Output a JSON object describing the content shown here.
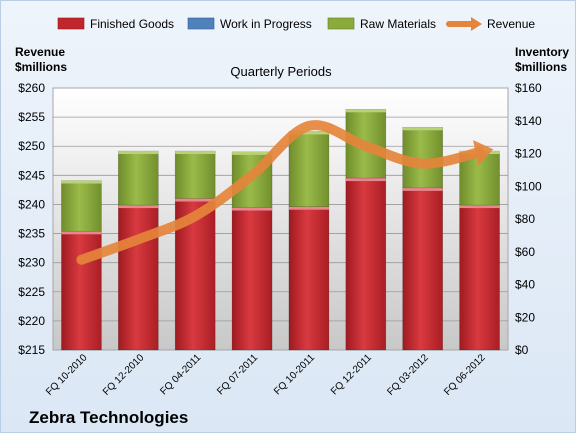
{
  "chart_data": {
    "type": "bar",
    "subtype": "stacked bar with line on secondary axis",
    "title": "Quarterly Periods",
    "company": "Zebra Technologies",
    "left_axis_label": [
      "Revenue",
      "$millions"
    ],
    "right_axis_label": [
      "Inventory",
      "$millions"
    ],
    "categories": [
      "FQ 10-2010",
      "FQ 12-2010",
      "FQ 04-2011",
      "FQ 07-2011",
      "FQ 10-2011",
      "FQ 12-2011",
      "FQ 03-2012",
      "FQ 06-2012"
    ],
    "series": [
      {
        "name": "Finished Goods",
        "axis": "inventory",
        "type": "bar",
        "color": "#c0272d",
        "values": [
          72.5,
          88.5,
          92.5,
          87,
          87.5,
          105,
          99,
          88.5
        ]
      },
      {
        "name": "Work in Progress",
        "axis": "inventory",
        "type": "bar",
        "color": "#4f81bd",
        "values": [
          0,
          0,
          0,
          0,
          0,
          0,
          0,
          0
        ]
      },
      {
        "name": "Raw Materials",
        "axis": "inventory",
        "type": "bar",
        "color": "#8aaa3c",
        "values": [
          31,
          33,
          29,
          34,
          46,
          42,
          37,
          33
        ]
      },
      {
        "name": "Revenue",
        "axis": "revenue",
        "type": "line",
        "color": "#e5843b",
        "values": [
          230.5,
          234,
          238,
          245,
          253.5,
          250,
          247,
          249
        ]
      }
    ],
    "left_axis": {
      "min": 215,
      "max": 260,
      "step": 5,
      "ticks": [
        "$215",
        "$220",
        "$225",
        "$230",
        "$235",
        "$240",
        "$245",
        "$250",
        "$255",
        "$260"
      ]
    },
    "right_axis": {
      "min": 0,
      "max": 160,
      "step": 20,
      "ticks": [
        "$0",
        "$20",
        "$40",
        "$60",
        "$80",
        "$100",
        "$120",
        "$140",
        "$160"
      ]
    },
    "grid": true,
    "legend_position": "top"
  }
}
